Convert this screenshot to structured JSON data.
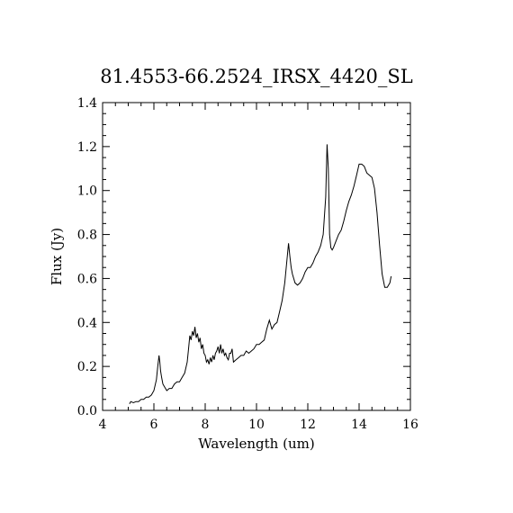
{
  "chart_data": {
    "type": "line",
    "title": "81.4553-66.2524_IRSX_4420_SL",
    "xlabel": "Wavelength (um)",
    "ylabel": "Flux (Jy)",
    "xlim": [
      4,
      16
    ],
    "ylim": [
      0.0,
      1.4
    ],
    "xticks": [
      "4",
      "6",
      "8",
      "10",
      "12",
      "14",
      "16"
    ],
    "yticks": [
      "0.0",
      "0.2",
      "0.4",
      "0.6",
      "0.8",
      "1.0",
      "1.2",
      "1.4"
    ],
    "grid": false,
    "series": [
      {
        "x": [
          5.05,
          5.1,
          5.2,
          5.3,
          5.4,
          5.5,
          5.6,
          5.7,
          5.8,
          5.9,
          6.0,
          6.1,
          6.15,
          6.2,
          6.23,
          6.26,
          6.3,
          6.35,
          6.4,
          6.5,
          6.6,
          6.7,
          6.8,
          6.9,
          7.0,
          7.1,
          7.2,
          7.3,
          7.35,
          7.4,
          7.45,
          7.5,
          7.55,
          7.6,
          7.65,
          7.7,
          7.75,
          7.8,
          7.85,
          7.9,
          7.95,
          8.0,
          8.05,
          8.1,
          8.15,
          8.2,
          8.25,
          8.3,
          8.35,
          8.4,
          8.45,
          8.5,
          8.55,
          8.6,
          8.65,
          8.7,
          8.75,
          8.8,
          8.85,
          8.9,
          8.95,
          9.0,
          9.05,
          9.1,
          9.2,
          9.3,
          9.4,
          9.5,
          9.6,
          9.7,
          9.8,
          9.9,
          10.0,
          10.1,
          10.2,
          10.3,
          10.4,
          10.5,
          10.55,
          10.6,
          10.7,
          10.8,
          10.9,
          11.0,
          11.1,
          11.2,
          11.25,
          11.3,
          11.35,
          11.4,
          11.5,
          11.6,
          11.7,
          11.8,
          11.9,
          12.0,
          12.1,
          12.2,
          12.3,
          12.4,
          12.5,
          12.6,
          12.7,
          12.75,
          12.8,
          12.85,
          12.9,
          12.95,
          13.0,
          13.1,
          13.2,
          13.3,
          13.4,
          13.5,
          13.6,
          13.7,
          13.8,
          13.9,
          14.0,
          14.1,
          14.2,
          14.3,
          14.4,
          14.5,
          14.6,
          14.7,
          14.8,
          14.9,
          15.0,
          15.1,
          15.2,
          15.25
        ],
        "y": [
          0.03,
          0.04,
          0.035,
          0.04,
          0.04,
          0.05,
          0.05,
          0.06,
          0.06,
          0.07,
          0.09,
          0.14,
          0.2,
          0.25,
          0.22,
          0.18,
          0.15,
          0.12,
          0.11,
          0.09,
          0.1,
          0.1,
          0.12,
          0.13,
          0.13,
          0.15,
          0.17,
          0.22,
          0.28,
          0.34,
          0.32,
          0.36,
          0.34,
          0.38,
          0.33,
          0.35,
          0.31,
          0.33,
          0.28,
          0.3,
          0.26,
          0.25,
          0.22,
          0.23,
          0.21,
          0.24,
          0.22,
          0.25,
          0.23,
          0.26,
          0.27,
          0.29,
          0.26,
          0.3,
          0.26,
          0.28,
          0.25,
          0.26,
          0.24,
          0.23,
          0.26,
          0.26,
          0.28,
          0.22,
          0.23,
          0.24,
          0.25,
          0.25,
          0.27,
          0.26,
          0.27,
          0.28,
          0.3,
          0.3,
          0.31,
          0.32,
          0.37,
          0.41,
          0.39,
          0.37,
          0.39,
          0.4,
          0.45,
          0.5,
          0.58,
          0.7,
          0.76,
          0.7,
          0.65,
          0.62,
          0.58,
          0.57,
          0.58,
          0.6,
          0.63,
          0.65,
          0.65,
          0.67,
          0.7,
          0.72,
          0.75,
          0.8,
          0.97,
          1.21,
          1.1,
          0.8,
          0.74,
          0.73,
          0.74,
          0.77,
          0.8,
          0.82,
          0.86,
          0.91,
          0.95,
          0.98,
          1.02,
          1.07,
          1.12,
          1.12,
          1.11,
          1.08,
          1.07,
          1.06,
          1.01,
          0.9,
          0.75,
          0.62,
          0.56,
          0.56,
          0.58,
          0.61
        ]
      }
    ]
  }
}
